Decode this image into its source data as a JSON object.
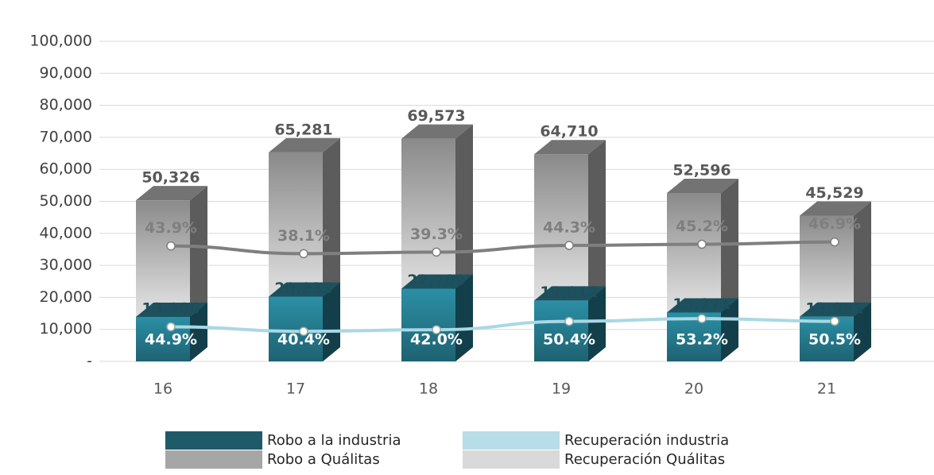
{
  "chart_data": {
    "type": "bar3d",
    "categories": [
      "16",
      "17",
      "18",
      "19",
      "20",
      "21"
    ],
    "ylim": [
      0,
      100000
    ],
    "yticks": [
      {
        "value": 0,
        "label": "-"
      },
      {
        "value": 10000,
        "label": "10,000"
      },
      {
        "value": 20000,
        "label": "20,000"
      },
      {
        "value": 30000,
        "label": "30,000"
      },
      {
        "value": 40000,
        "label": "40,000"
      },
      {
        "value": 50000,
        "label": "50,000"
      },
      {
        "value": 60000,
        "label": "60,000"
      },
      {
        "value": 70000,
        "label": "70,000"
      },
      {
        "value": 80000,
        "label": "80,000"
      },
      {
        "value": 90000,
        "label": "90,000"
      },
      {
        "value": 100000,
        "label": "100,000"
      }
    ],
    "grid": true,
    "series": [
      {
        "name": "Robo a Quálitas",
        "kind": "bar",
        "color": "#a6a6a6",
        "values": [
          50326,
          65281,
          69573,
          64710,
          52596,
          45529
        ],
        "value_labels": [
          "50,326",
          "65,281",
          "69,573",
          "64,710",
          "52,596",
          "45,529"
        ]
      },
      {
        "name": "Robo a la industria",
        "kind": "bar",
        "color": "#1f5a68",
        "values": [
          13906,
          20233,
          22709,
          19012,
          15271,
          13951
        ],
        "value_labels": [
          "13,906",
          "20,233",
          "22,709",
          "19,012",
          "15,271",
          "13,951"
        ]
      },
      {
        "name": "Recuperación Quálitas",
        "kind": "line",
        "color": "#d9d9d9",
        "line_color": "#7f7f7f",
        "ylim": [
          -43,
          198
        ],
        "values": [
          43.9,
          38.1,
          39.3,
          44.3,
          45.2,
          46.9
        ],
        "value_labels": [
          "43.9%",
          "38.1%",
          "39.3%",
          "44.3%",
          "45.2%",
          "46.9%"
        ]
      },
      {
        "name": "Recuperación industria",
        "kind": "line",
        "color": "#b7dde8",
        "line_color": "#a9d8e4",
        "ylim": [
          10,
          333
        ],
        "values": [
          44.9,
          40.4,
          42.0,
          50.4,
          53.2,
          50.5
        ],
        "value_labels": [
          "44.9%",
          "40.4%",
          "42.0%",
          "50.4%",
          "53.2%",
          "50.5%"
        ]
      }
    ],
    "legend_order": [
      1,
      3,
      0,
      2
    ]
  }
}
